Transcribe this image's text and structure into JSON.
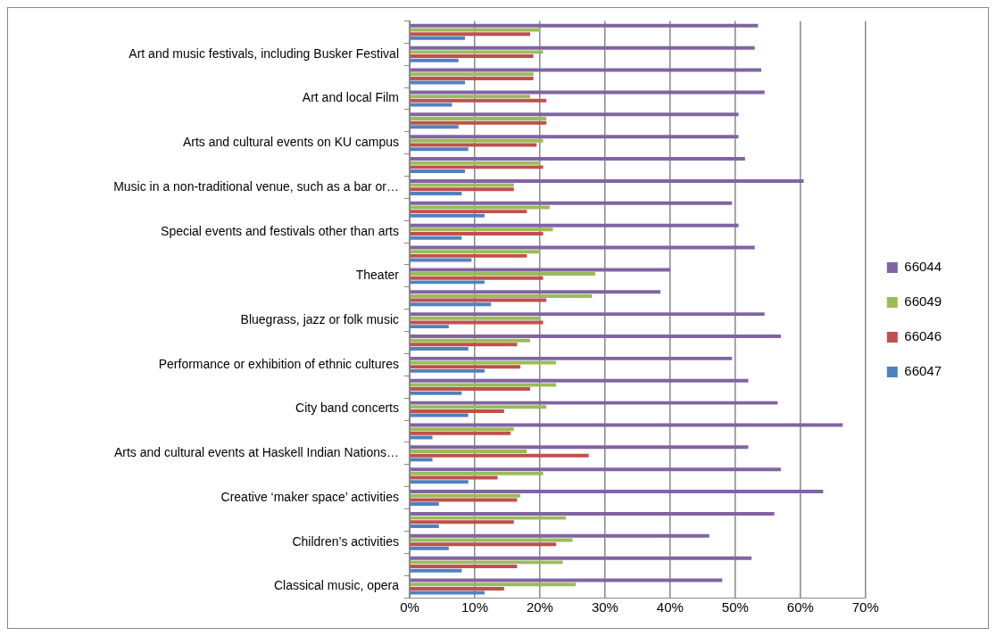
{
  "chart_data": {
    "type": "bar",
    "orientation": "horizontal",
    "categories": [
      null,
      "Art and music festivals, including Busker Festival",
      null,
      "Art and local Film",
      null,
      "Arts and cultural events on KU campus",
      null,
      "Music in a non-traditional venue, such as a bar or…",
      null,
      "Special events and festivals other than arts",
      null,
      "Theater",
      null,
      "Bluegrass, jazz or folk music",
      null,
      "Performance or exhibition of ethnic cultures",
      null,
      "City band concerts",
      null,
      "Arts and cultural events at Haskell Indian Nations…",
      null,
      "Creative ‘maker space’ activities",
      null,
      "Children’s activities",
      null,
      "Classical music, opera"
    ],
    "series": [
      {
        "name": "66044",
        "color": "#8064a2",
        "values": [
          53.5,
          53,
          54,
          54.5,
          50.5,
          50.5,
          51.5,
          60.5,
          49.5,
          50.5,
          53,
          40,
          38.5,
          54.5,
          57,
          49.5,
          52,
          56.5,
          66.5,
          52,
          57,
          63.5,
          56,
          46,
          52.5,
          48
        ]
      },
      {
        "name": "66049",
        "color": "#9bbb59",
        "values": [
          20,
          20.5,
          19,
          18.5,
          21,
          20.5,
          20,
          16,
          21.5,
          22,
          20,
          28.5,
          28,
          20,
          18.5,
          22.5,
          22.5,
          21,
          16,
          18,
          20.5,
          17,
          24,
          25,
          23.5,
          25.5
        ]
      },
      {
        "name": "66046",
        "color": "#c0504d",
        "values": [
          18.5,
          19,
          19,
          21,
          21,
          19.5,
          20.5,
          16,
          18,
          20.5,
          18,
          20.5,
          21,
          20.5,
          16.5,
          17,
          18.5,
          14.5,
          15.5,
          27.5,
          13.5,
          16.5,
          16,
          22.5,
          16.5,
          14.5
        ]
      },
      {
        "name": "66047",
        "color": "#4f81bd",
        "values": [
          8.5,
          7.5,
          8.5,
          6.5,
          7.5,
          9,
          8.5,
          8,
          11.5,
          8,
          9.5,
          11.5,
          12.5,
          6,
          9,
          11.5,
          8,
          9,
          3.5,
          3.5,
          9,
          4.5,
          4.5,
          6,
          8,
          11.5
        ]
      }
    ],
    "xlim": [
      0,
      70
    ],
    "xticks": [
      {
        "value": 0,
        "label": "0%"
      },
      {
        "value": 10,
        "label": "10%"
      },
      {
        "value": 20,
        "label": "20%"
      },
      {
        "value": 30,
        "label": "30%"
      },
      {
        "value": 40,
        "label": "40%"
      },
      {
        "value": 50,
        "label": "50%"
      },
      {
        "value": 60,
        "label": "60%"
      },
      {
        "value": 70,
        "label": "70%"
      }
    ],
    "grid": "x",
    "legend": "right"
  }
}
